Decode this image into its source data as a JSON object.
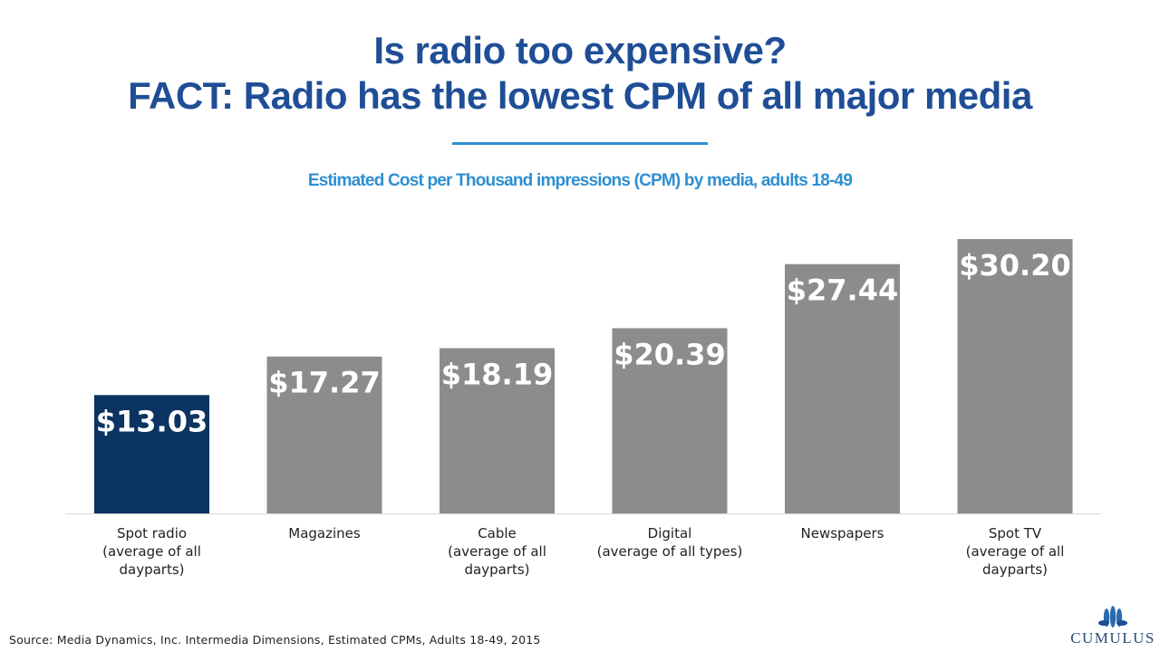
{
  "header": {
    "title_line1": "Is radio too expensive?",
    "title_line2": "FACT: Radio has the lowest CPM of all major media",
    "subtitle": "Estimated Cost per Thousand impressions (CPM) by media, adults 18-49"
  },
  "chart_data": {
    "type": "bar",
    "categories": [
      [
        "Spot radio",
        "(average of all",
        "dayparts)"
      ],
      [
        "Magazines"
      ],
      [
        "Cable",
        "(average of all",
        "dayparts)"
      ],
      [
        "Digital",
        "(average of all types)"
      ],
      [
        "Newspapers"
      ],
      [
        "Spot TV",
        "(average of all",
        "dayparts)"
      ]
    ],
    "values": [
      13.03,
      17.27,
      18.19,
      20.39,
      27.44,
      30.2
    ],
    "labels": [
      "$13.03",
      "$17.27",
      "$18.19",
      "$20.39",
      "$27.44",
      "$30.20"
    ],
    "highlight_index": 0,
    "colors": {
      "highlight": "#0b3461",
      "default": "#8c8c8c",
      "axis": "#d9d9d9",
      "label": "#ffffff"
    },
    "ylim": [
      0,
      30.2
    ],
    "grid": false
  },
  "footer": {
    "source": "Source: Media Dynamics, Inc. Intermedia Dimensions, Estimated CPMs, Adults 18-49, 2015",
    "logo_text": "CUMULUS",
    "logo_icon": "cumulus-logo-icon"
  }
}
